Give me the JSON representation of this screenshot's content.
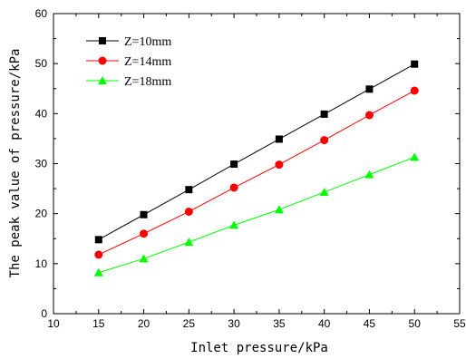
{
  "chart_data": {
    "type": "line",
    "title": "",
    "xlabel": "Inlet pressure/kPa",
    "ylabel": "The peak value of pressure/kPa",
    "xlim": [
      10,
      55
    ],
    "ylim": [
      0,
      60
    ],
    "xticks": [
      10,
      15,
      20,
      25,
      30,
      35,
      40,
      45,
      50,
      55
    ],
    "yticks": [
      0,
      10,
      20,
      30,
      40,
      50,
      60
    ],
    "grid": false,
    "legend_position": "top-left",
    "x": [
      15,
      20,
      25,
      30,
      35,
      40,
      45,
      50
    ],
    "series": [
      {
        "name": "Z=10mm",
        "color": "#000000",
        "marker": "square",
        "values": [
          14.8,
          19.8,
          24.8,
          29.9,
          34.9,
          39.9,
          44.9,
          49.9
        ]
      },
      {
        "name": "Z=14mm",
        "color": "#ff0000",
        "marker": "circle",
        "values": [
          11.8,
          16.0,
          20.4,
          25.2,
          29.8,
          34.7,
          39.7,
          44.6
        ]
      },
      {
        "name": "Z=18mm",
        "color": "#00ff00",
        "marker": "triangle",
        "values": [
          8.2,
          11.0,
          14.3,
          17.7,
          20.8,
          24.3,
          27.8,
          31.3
        ]
      }
    ]
  }
}
